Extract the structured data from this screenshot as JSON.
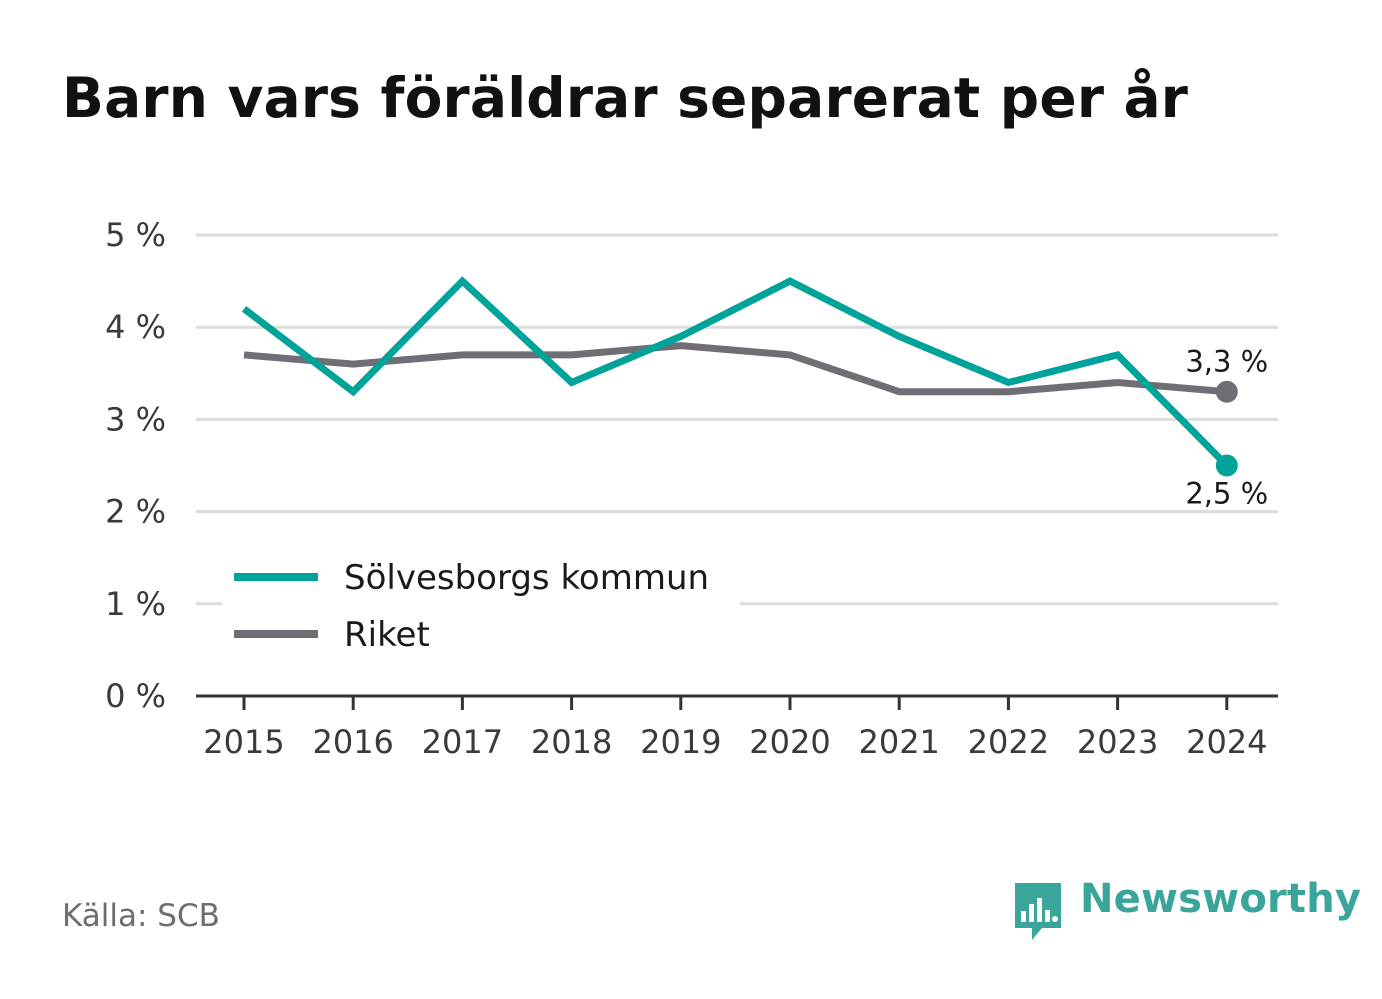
{
  "title": "Barn vars föräldrar separerat per år",
  "source": "Källa: SCB",
  "brand": {
    "name": "Newsworthy",
    "icon": "newsworthy-logo-icon",
    "color": "#3aa59b"
  },
  "chart_data": {
    "type": "line",
    "x": [
      "2015",
      "2016",
      "2017",
      "2018",
      "2019",
      "2020",
      "2021",
      "2022",
      "2023",
      "2024"
    ],
    "ylim": [
      0,
      5
    ],
    "yticks": [
      0,
      1,
      2,
      3,
      4,
      5
    ],
    "ytick_labels": [
      "0 %",
      "1 %",
      "2 %",
      "3 %",
      "4 %",
      "5 %"
    ],
    "grid": true,
    "legend_position": "bottom-left",
    "series": [
      {
        "name": "Sölvesborgs kommun",
        "color": "#00a39a",
        "values": [
          4.2,
          3.3,
          4.5,
          3.4,
          3.9,
          4.5,
          3.9,
          3.4,
          3.7,
          2.5
        ],
        "end_label": "2,5 %"
      },
      {
        "name": "Riket",
        "color": "#6f6e75",
        "values": [
          3.7,
          3.6,
          3.7,
          3.7,
          3.8,
          3.7,
          3.3,
          3.3,
          3.4,
          3.3
        ],
        "end_label": "3,3 %"
      }
    ]
  }
}
